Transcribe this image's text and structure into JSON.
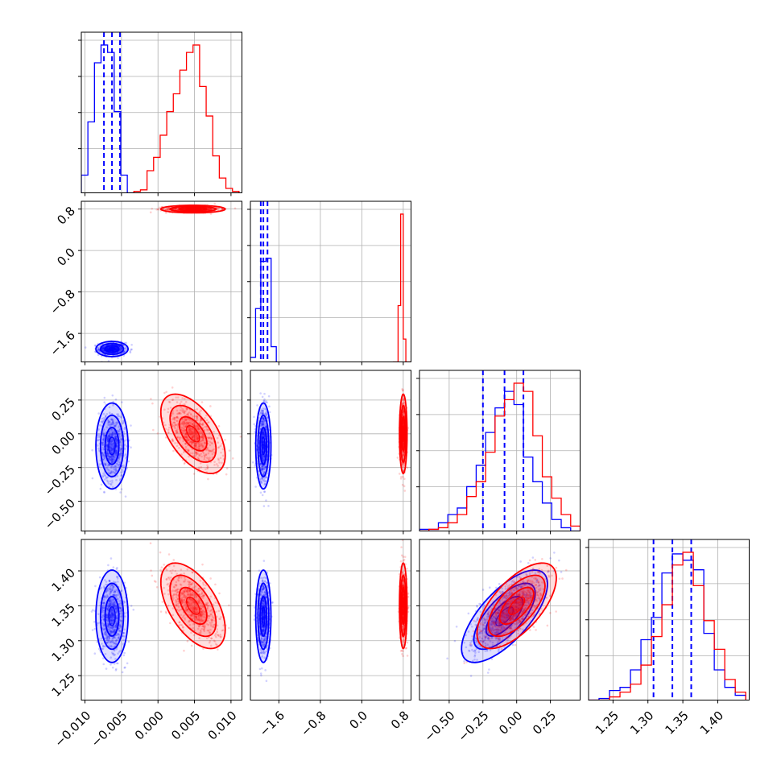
{
  "colors": {
    "series_a": "#0000ff",
    "series_b": "#ff0000",
    "grid": "#b0b0b0"
  },
  "chart_data": {
    "type": "scatter",
    "subtype": "corner-plot",
    "grid": true,
    "legend": "none",
    "parameters": [
      {
        "range": [
          -0.0105,
          0.0115
        ],
        "ticks": [
          -0.01,
          -0.005,
          0.0,
          0.005,
          0.01
        ],
        "tick_labels": [
          "−0.010",
          "−0.005",
          "0.000",
          "0.005",
          "0.010"
        ]
      },
      {
        "range": [
          -2.15,
          0.95
        ],
        "ticks": [
          -1.6,
          -0.8,
          0.0,
          0.8
        ],
        "tick_labels": [
          "−1.6",
          "−0.8",
          "0.0",
          "0.8"
        ]
      },
      {
        "range": [
          -0.72,
          0.47
        ],
        "ticks": [
          -0.5,
          -0.25,
          0.0,
          0.25
        ],
        "tick_labels": [
          "−0.50",
          "−0.25",
          "0.00",
          "0.25"
        ]
      },
      {
        "range": [
          1.215,
          1.445
        ],
        "ticks": [
          1.25,
          1.3,
          1.35,
          1.4
        ],
        "tick_labels": [
          "1.25",
          "1.30",
          "1.35",
          "1.40"
        ]
      }
    ],
    "series": [
      {
        "color": "#0000ff",
        "mean": [
          -0.0063,
          -1.9,
          -0.09,
          1.335
        ],
        "std": [
          0.0009,
          0.06,
          0.13,
          0.027
        ],
        "correlation": [
          [
            1,
            0,
            0,
            0
          ],
          [
            0,
            1,
            0,
            0
          ],
          [
            0,
            0,
            1,
            0.7
          ],
          [
            0,
            0,
            0.7,
            1
          ]
        ],
        "quantiles": [
          [
            -0.0074,
            -0.0063,
            -0.0052
          ],
          [
            -1.95,
            -1.9,
            -1.82
          ],
          [
            -0.25,
            -0.09,
            0.05
          ],
          [
            1.308,
            1.335,
            1.362
          ]
        ],
        "histograms": [
          {
            "edges": [
              -0.0105,
              -0.0096,
              -0.0087,
              -0.0078,
              -0.0069,
              -0.006,
              -0.0051,
              -0.0042,
              -0.0033
            ],
            "counts": [
              0.12,
              0.48,
              0.88,
              1.0,
              0.95,
              0.55,
              0.12,
              0.0
            ]
          },
          {
            "edges": [
              -2.15,
              -2.05,
              -1.95,
              -1.85,
              -1.75,
              -1.65
            ],
            "counts": [
              0.03,
              0.35,
              0.66,
              0.68,
              0.1
            ]
          },
          {
            "edges": [
              -0.72,
              -0.65,
              -0.58,
              -0.51,
              -0.44,
              -0.37,
              -0.3,
              -0.23,
              -0.16,
              -0.09,
              -0.02,
              0.05,
              0.12,
              0.19,
              0.26,
              0.33,
              0.4,
              0.47
            ],
            "counts": [
              0.01,
              0.01,
              0.05,
              0.1,
              0.14,
              0.27,
              0.4,
              0.6,
              0.75,
              0.85,
              0.77,
              0.45,
              0.3,
              0.17,
              0.07,
              0.02,
              0.0
            ]
          },
          {
            "edges": [
              1.215,
              1.23,
              1.245,
              1.26,
              1.275,
              1.29,
              1.305,
              1.32,
              1.335,
              1.35,
              1.365,
              1.38,
              1.395,
              1.41,
              1.425,
              1.44
            ],
            "counts": [
              0.0,
              0.01,
              0.06,
              0.08,
              0.19,
              0.38,
              0.52,
              0.8,
              0.92,
              0.88,
              0.82,
              0.42,
              0.19,
              0.08,
              0.03
            ]
          }
        ]
      },
      {
        "color": "#ff0000",
        "mean": [
          0.0048,
          0.8,
          0.0,
          1.35
        ],
        "std": [
          0.0018,
          0.03,
          0.12,
          0.025
        ],
        "correlation": [
          [
            1,
            0,
            -0.55,
            -0.55
          ],
          [
            0,
            1,
            0,
            0
          ],
          [
            -0.55,
            0,
            1,
            0.65
          ],
          [
            -0.55,
            0,
            0.65,
            1
          ]
        ],
        "quantiles": [],
        "histograms": [
          {
            "edges": [
              -0.0033,
              -0.0024,
              -0.0015,
              -0.0006,
              0.0003,
              0.0012,
              0.0021,
              0.003,
              0.0039,
              0.0048,
              0.0057,
              0.0066,
              0.0075,
              0.0084,
              0.0093,
              0.0102,
              0.0111
            ],
            "counts": [
              0.01,
              0.02,
              0.15,
              0.24,
              0.39,
              0.55,
              0.67,
              0.83,
              0.95,
              1.0,
              0.72,
              0.52,
              0.25,
              0.1,
              0.03,
              0.01
            ]
          },
          {
            "edges": [
              0.6,
              0.7,
              0.75,
              0.8,
              0.85,
              0.95
            ],
            "counts": [
              0.0,
              0.37,
              0.97,
              0.15,
              0.0
            ]
          },
          {
            "edges": [
              -0.72,
              -0.65,
              -0.58,
              -0.51,
              -0.44,
              -0.37,
              -0.3,
              -0.23,
              -0.16,
              -0.09,
              -0.02,
              0.05,
              0.12,
              0.19,
              0.26,
              0.33,
              0.4,
              0.47
            ],
            "counts": [
              0.0,
              0.01,
              0.02,
              0.05,
              0.1,
              0.21,
              0.3,
              0.48,
              0.7,
              0.8,
              0.9,
              0.85,
              0.58,
              0.33,
              0.2,
              0.1,
              0.03
            ]
          },
          {
            "edges": [
              1.215,
              1.23,
              1.245,
              1.26,
              1.275,
              1.29,
              1.305,
              1.32,
              1.335,
              1.35,
              1.365,
              1.38,
              1.395,
              1.41,
              1.425,
              1.44
            ],
            "counts": [
              0.0,
              0.0,
              0.02,
              0.05,
              0.1,
              0.22,
              0.4,
              0.6,
              0.85,
              0.93,
              0.72,
              0.5,
              0.32,
              0.13,
              0.05
            ]
          }
        ]
      }
    ]
  }
}
